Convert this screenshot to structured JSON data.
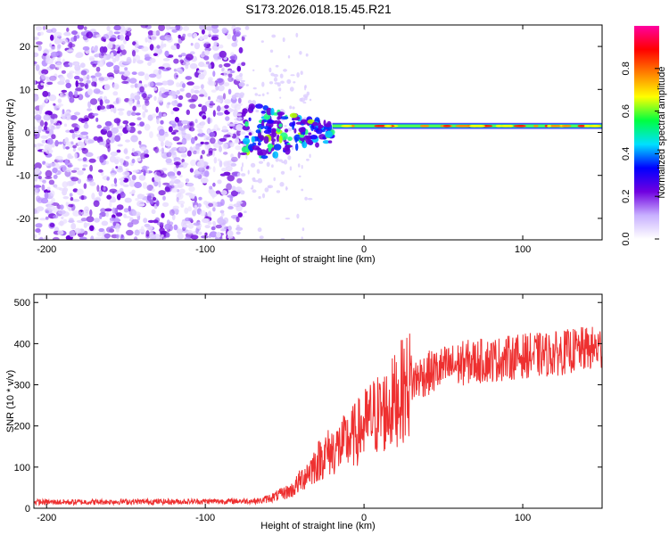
{
  "title": "S173.2026.018.15.45.R21",
  "chart_data": [
    {
      "type": "heatmap",
      "name": "spectrogram",
      "xlabel": "Height of straight line (km)",
      "ylabel": "Frequency (Hz)",
      "xlim": [
        -208,
        150
      ],
      "ylim": [
        -25,
        25
      ],
      "xticks": [
        -200,
        -100,
        0,
        100
      ],
      "yticks": [
        -20,
        -10,
        0,
        10,
        20
      ],
      "colorbar": {
        "label": "Normalized spectral amplitude",
        "range": [
          0,
          1
        ],
        "ticks": [
          "0.0",
          "0.2",
          "0.4",
          "0.6",
          "0.8"
        ],
        "tick_values": [
          0.0,
          0.2,
          0.4,
          0.6,
          0.8
        ],
        "colors": [
          "#ffffff",
          "#c8b0ff",
          "#7000e0",
          "#0000ff",
          "#00e0ff",
          "#00ff40",
          "#ffff00",
          "#ff8000",
          "#ff0000",
          "#ff00a0"
        ]
      },
      "regions": [
        {
          "description": "noise",
          "x_range": [
            -208,
            -76
          ],
          "freq_range": [
            -25,
            25
          ],
          "amplitude": 0.1
        },
        {
          "description": "transition",
          "x_range": [
            -76,
            -20
          ],
          "freq_range": [
            -8,
            8
          ],
          "amplitude": 0.3
        },
        {
          "description": "carrier line",
          "x_range": [
            -20,
            150
          ],
          "frequency": 1.5,
          "amplitude": 0.85
        }
      ]
    },
    {
      "type": "line",
      "name": "snr",
      "xlabel": "Height of straight line (km)",
      "ylabel": "SNR (10 * v/v)",
      "xlim": [
        -208,
        150
      ],
      "ylim": [
        0,
        520
      ],
      "xticks": [
        -200,
        -100,
        0,
        100
      ],
      "yticks": [
        0,
        100,
        200,
        300,
        400,
        500
      ],
      "color": "#ee3030",
      "series": [
        {
          "name": "SNR trend",
          "x": [
            -208,
            -180,
            -150,
            -120,
            -90,
            -65,
            -55,
            -45,
            -35,
            -25,
            -15,
            -5,
            5,
            15,
            25,
            35,
            50,
            65,
            80,
            100,
            120,
            135,
            150
          ],
          "y": [
            15,
            15,
            16,
            16,
            17,
            18,
            30,
            45,
            90,
            130,
            150,
            180,
            220,
            240,
            290,
            320,
            340,
            355,
            360,
            370,
            375,
            385,
            390
          ]
        }
      ]
    }
  ]
}
